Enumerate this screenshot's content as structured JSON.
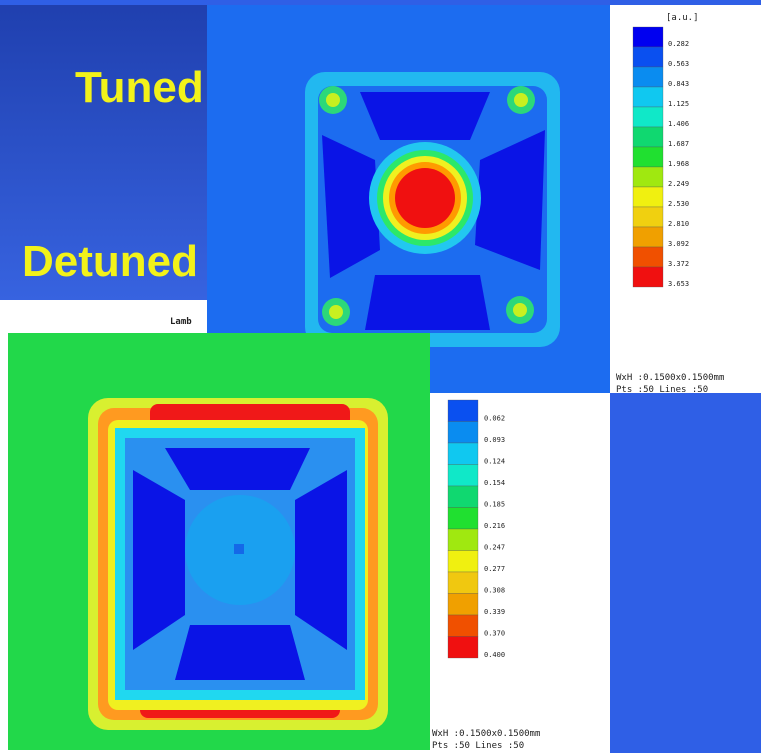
{
  "slide": {
    "labels": [
      "Tuned",
      "Detuned"
    ],
    "caption": "Lamb"
  },
  "top_map": {
    "unit": "[a.u.]",
    "scale": [
      "0.282",
      "0.563",
      "0.843",
      "1.125",
      "1.406",
      "1.687",
      "1.968",
      "2.249",
      "2.530",
      "2.810",
      "3.092",
      "3.372",
      "3.653"
    ],
    "footer": [
      "WxH :0.1500x0.1500mm",
      "Pts :50 Lines :50"
    ]
  },
  "bottom_map": {
    "scale": [
      "0.062",
      "0.093",
      "0.124",
      "0.154",
      "0.185",
      "0.216",
      "0.247",
      "0.277",
      "0.308",
      "0.339",
      "0.370",
      "0.400"
    ],
    "footer": [
      "WxH :0.1500x0.1500mm",
      "Pts :50 Lines :50"
    ]
  }
}
